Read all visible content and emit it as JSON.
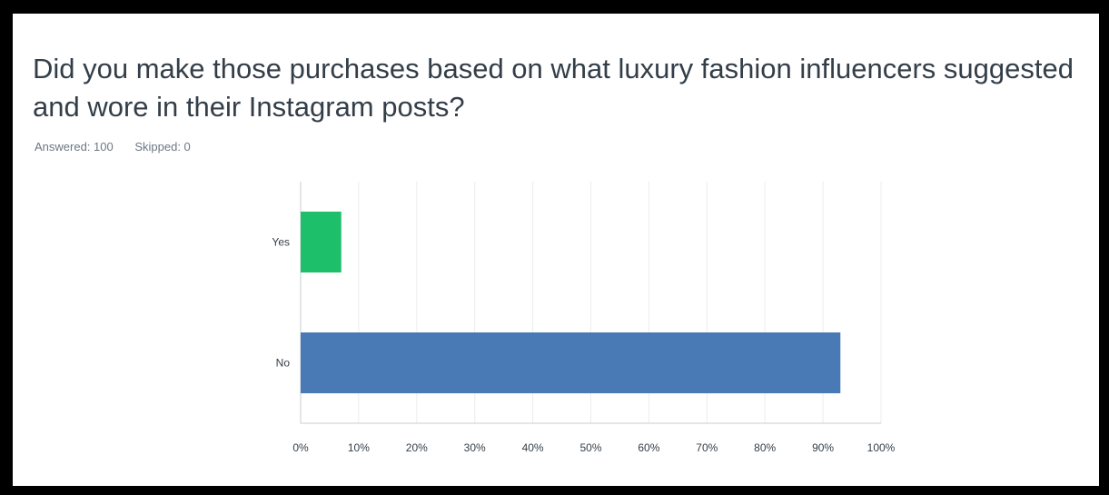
{
  "question": {
    "title": "Did you make those purchases based on what luxury fashion influencers suggested and wore in their Instagram posts?",
    "answered": "Answered: 100",
    "skipped": "Skipped: 0"
  },
  "chart_data": {
    "type": "bar",
    "orientation": "horizontal",
    "categories": [
      "Yes",
      "No"
    ],
    "values": [
      7,
      93
    ],
    "colors": [
      "#1dbf6a",
      "#4a7ab5"
    ],
    "xlim": [
      0,
      100
    ],
    "ticks": [
      "0%",
      "10%",
      "20%",
      "30%",
      "40%",
      "50%",
      "60%",
      "70%",
      "80%",
      "90%",
      "100%"
    ],
    "grid": true
  }
}
